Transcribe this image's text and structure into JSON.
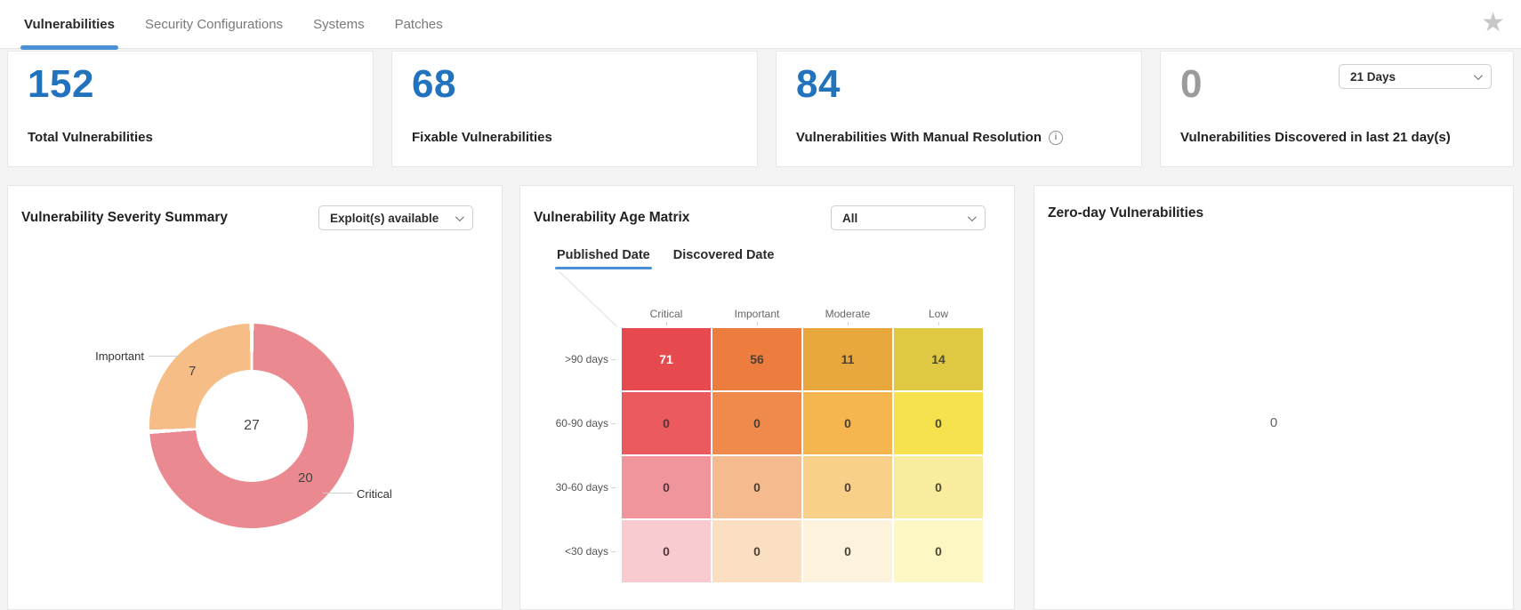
{
  "colors": {
    "accent_blue": "#2173bd",
    "tab_underline": "#4a90d5",
    "value_gray": "#9b9b9b",
    "page_bg": "#f4f4f5",
    "star_gray": "#c7c7c7"
  },
  "icons": {
    "star": "★",
    "info": "i"
  },
  "tabbar": {
    "tabs": [
      {
        "label": "Vulnerabilities",
        "active": true
      },
      {
        "label": "Security Configurations",
        "active": false
      },
      {
        "label": "Systems",
        "active": false
      },
      {
        "label": "Patches",
        "active": false
      }
    ]
  },
  "stat_cards": [
    {
      "value": "152",
      "label": "Total Vulnerabilities"
    },
    {
      "value": "68",
      "label": "Fixable Vulnerabilities"
    },
    {
      "value": "84",
      "label": "Vulnerabilities With Manual Resolution",
      "has_info_icon": true
    },
    {
      "value": "0",
      "label": "Vulnerabilities Discovered in last 21 day(s)",
      "dropdown_value": "21 Days"
    }
  ],
  "severity_summary": {
    "title": "Vulnerability Severity Summary",
    "dropdown_value": "Exploit(s) available",
    "chart": {
      "type": "pie",
      "center_total": "27",
      "segments": [
        {
          "label": "Critical",
          "value": 20,
          "value_text": "20",
          "color": "#ea8a90"
        },
        {
          "label": "Important",
          "value": 7,
          "value_text": "7",
          "color": "#f6bd86"
        }
      ]
    }
  },
  "age_matrix": {
    "title": "Vulnerability Age Matrix",
    "dropdown_value": "All",
    "tabs": [
      {
        "label": "Published Date",
        "active": true
      },
      {
        "label": "Discovered Date",
        "active": false
      }
    ],
    "columns": [
      "Critical",
      "Important",
      "Moderate",
      "Low"
    ],
    "rows": [
      ">90 days",
      "60-90 days",
      "30-60 days",
      "<30 days"
    ],
    "cells": [
      [
        {
          "value": "71",
          "bg": "#e64a4e",
          "text": "#ffffff"
        },
        {
          "value": "56",
          "bg": "#ed7c3f",
          "text": "#4d4033"
        },
        {
          "value": "11",
          "bg": "#e9a83e",
          "text": "#4d4033"
        },
        {
          "value": "14",
          "bg": "#dfc943",
          "text": "#4d4a33"
        }
      ],
      [
        {
          "value": "0",
          "bg": "#ea5a5e",
          "text": "#59333a"
        },
        {
          "value": "0",
          "bg": "#ef8a4c",
          "text": "#4d4033"
        },
        {
          "value": "0",
          "bg": "#f5b64f",
          "text": "#4d4033"
        },
        {
          "value": "0",
          "bg": "#f6e14e",
          "text": "#4d4a33"
        }
      ],
      [
        {
          "value": "0",
          "bg": "#f0959b",
          "text": "#59333a"
        },
        {
          "value": "0",
          "bg": "#f5ba8e",
          "text": "#4d4033"
        },
        {
          "value": "0",
          "bg": "#f8d08a",
          "text": "#4d4033"
        },
        {
          "value": "0",
          "bg": "#faec9e",
          "text": "#4d4a33"
        }
      ],
      [
        {
          "value": "0",
          "bg": "#f7cbd0",
          "text": "#59333a"
        },
        {
          "value": "0",
          "bg": "#fbdfc3",
          "text": "#4d4033"
        },
        {
          "value": "0",
          "bg": "#fdf2dc",
          "text": "#4d4033"
        },
        {
          "value": "0",
          "bg": "#fdf7c3",
          "text": "#4d4a33"
        }
      ]
    ]
  },
  "zero_day": {
    "title": "Zero-day Vulnerabilities",
    "value": "0"
  }
}
